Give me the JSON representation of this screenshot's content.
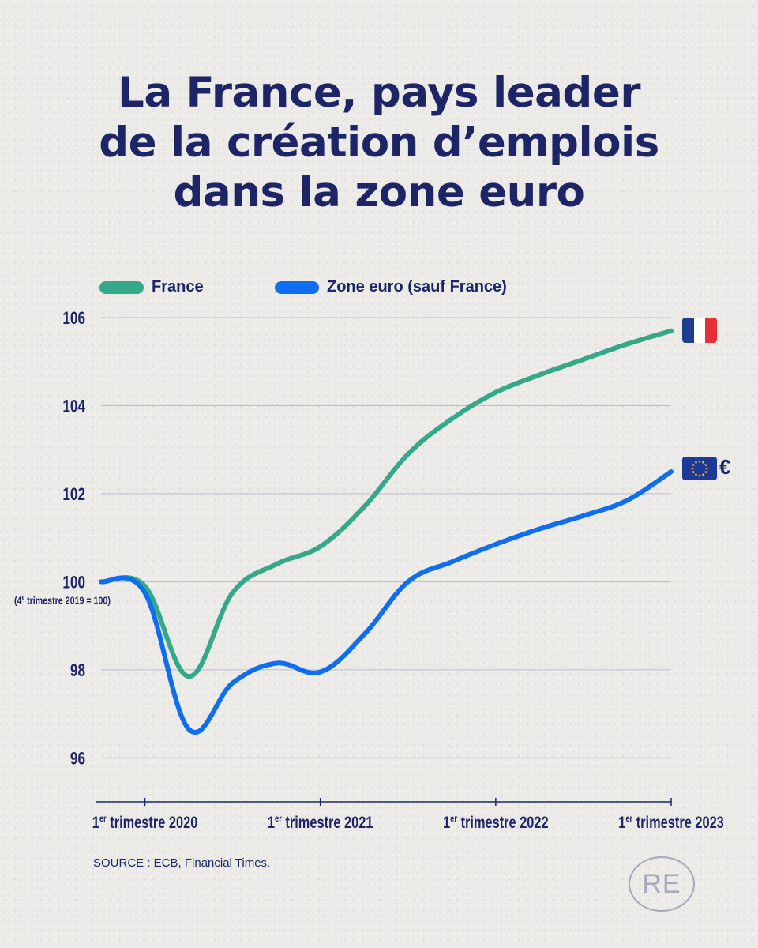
{
  "chart_data": {
    "type": "line",
    "title": "La France, pays leader de la création d’emplois dans la zone euro",
    "title_lines": [
      "La France, pays leader",
      "de la création d’emplois",
      "dans la zone euro"
    ],
    "x_ticks": [
      "1er trimestre 2020",
      "1er trimestre 2021",
      "1er trimestre 2022",
      "1er trimestre 2023"
    ],
    "x_tick_values": [
      2020.0,
      2021.0,
      2022.0,
      2023.0
    ],
    "xlim": [
      2019.75,
      2023.0
    ],
    "ylim": [
      95,
      106
    ],
    "y_ticks": [
      96,
      98,
      100,
      102,
      104,
      106
    ],
    "y_note": "(4e trimestre 2019 = 100)",
    "grid": true,
    "legend_position": "top-left",
    "series": [
      {
        "name": "France",
        "color": "#35a889",
        "x": [
          2019.75,
          2020.0,
          2020.25,
          2020.5,
          2020.75,
          2021.0,
          2021.25,
          2021.5,
          2021.75,
          2022.0,
          2022.25,
          2022.5,
          2022.75,
          2023.0
        ],
        "y": [
          100.0,
          99.9,
          97.85,
          99.75,
          100.4,
          100.8,
          101.7,
          102.9,
          103.7,
          104.3,
          104.7,
          105.05,
          105.4,
          105.7
        ]
      },
      {
        "name": "Zone euro (sauf France)",
        "color": "#0f6df0",
        "x": [
          2019.75,
          2020.0,
          2020.25,
          2020.5,
          2020.75,
          2021.0,
          2021.25,
          2021.5,
          2021.75,
          2022.0,
          2022.25,
          2022.5,
          2022.75,
          2023.0
        ],
        "y": [
          100.0,
          99.75,
          96.65,
          97.7,
          98.15,
          97.95,
          98.8,
          100.0,
          100.45,
          100.85,
          101.2,
          101.5,
          101.85,
          102.5
        ]
      }
    ]
  },
  "legend": {
    "france_label": "France",
    "euro_label": "Zone euro (sauf France)"
  },
  "source": "SOURCE : ECB, Financial Times.",
  "logo_text": "RE",
  "euro_symbol": "€",
  "flag_colors": {
    "france": [
      "#1f3d8f",
      "#ffffff",
      "#e63037"
    ],
    "eu_blue": "#1d3a9a",
    "eu_star": "#f6c500"
  },
  "colors": {
    "text": "#1d2566",
    "grid": "#b8bad6",
    "axis": "#1d2566"
  }
}
